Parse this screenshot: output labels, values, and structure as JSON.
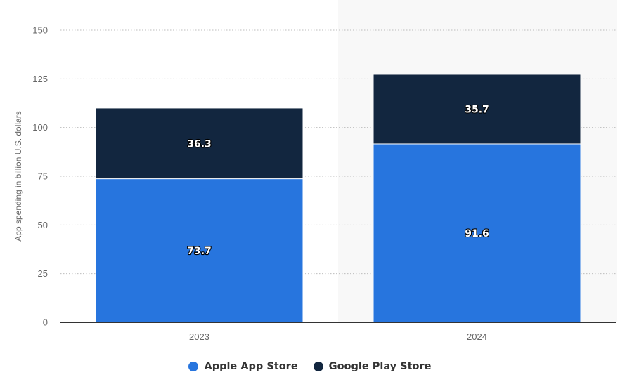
{
  "chart_data": {
    "type": "bar",
    "stacked": true,
    "categories": [
      "2023",
      "2024"
    ],
    "series": [
      {
        "name": "Apple App Store",
        "values": [
          73.7,
          91.6
        ],
        "color": "#2775de"
      },
      {
        "name": "Google Play Store",
        "values": [
          36.3,
          35.7
        ],
        "color": "#12263f"
      }
    ],
    "data_labels": {
      "Apple App Store": [
        "73.7",
        "91.6"
      ],
      "Google Play Store": [
        "36.3",
        "35.7"
      ]
    },
    "ylabel": "App spending in billion U.S. dollars",
    "xlabel": "",
    "ylim": [
      0,
      150
    ],
    "yticks": [
      "0",
      "25",
      "50",
      "75",
      "100",
      "125",
      "150"
    ],
    "grid": true,
    "highlighted_category": "2024",
    "highlight_color": "#f8f8f8",
    "legend_position": "bottom-center"
  }
}
